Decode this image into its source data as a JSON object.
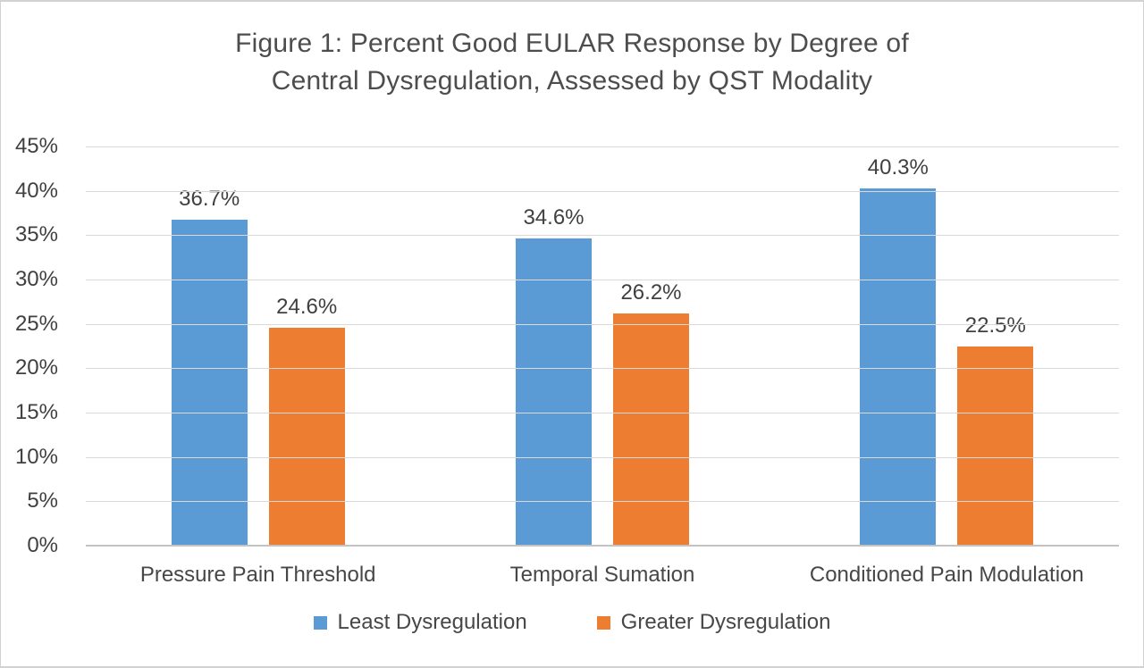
{
  "title": {
    "line1": "Figure 1: Percent Good EULAR Response by Degree of",
    "line2": "Central Dysregulation, Assessed by QST Modality"
  },
  "chart_data": {
    "type": "bar",
    "title": "Figure 1: Percent Good EULAR Response by Degree of Central Dysregulation, Assessed by QST Modality",
    "categories": [
      "Pressure Pain Threshold",
      "Temporal Sumation",
      "Conditioned Pain Modulation"
    ],
    "series": [
      {
        "name": "Least Dysregulation",
        "color": "#5B9BD5",
        "values": [
          36.7,
          34.6,
          40.3
        ],
        "labels": [
          "36.7%",
          "34.6%",
          "40.3%"
        ]
      },
      {
        "name": "Greater Dysregulation",
        "color": "#ED7D31",
        "values": [
          24.6,
          26.2,
          22.5
        ],
        "labels": [
          "24.6%",
          "26.2%",
          "22.5%"
        ]
      }
    ],
    "xlabel": "",
    "ylabel": "",
    "ylim": [
      0,
      45
    ],
    "ytick_step": 5,
    "ytick_labels": [
      "0%",
      "5%",
      "10%",
      "15%",
      "20%",
      "25%",
      "30%",
      "35%",
      "40%",
      "45%"
    ],
    "grid": true,
    "legend_position": "bottom",
    "colors": {
      "gridline": "#d9d9d9",
      "axis_line": "#c3c3c3",
      "text": "#404040",
      "title_text": "#4d4d4d"
    }
  }
}
